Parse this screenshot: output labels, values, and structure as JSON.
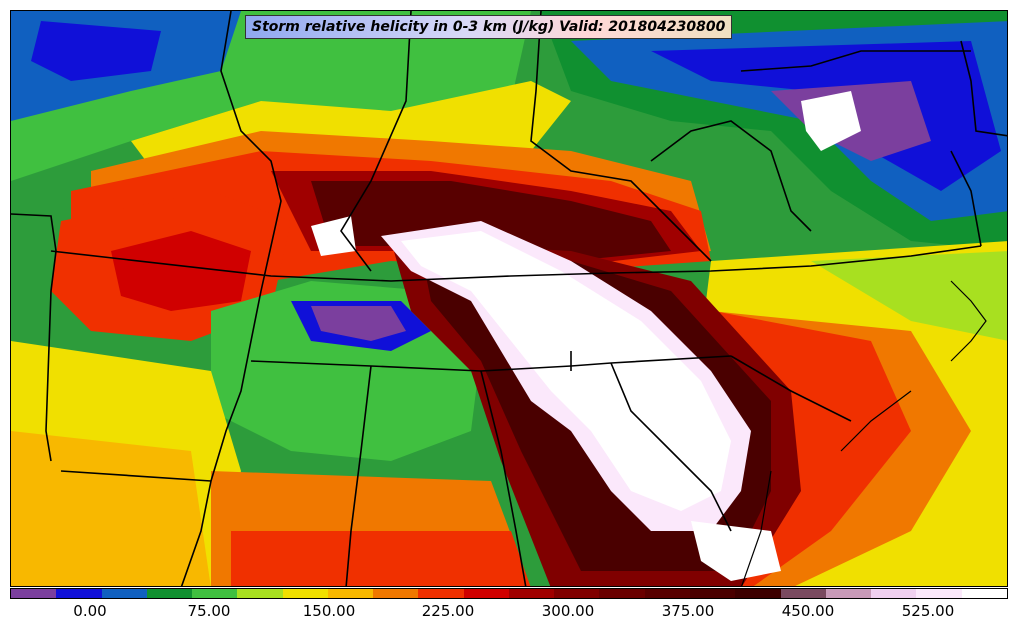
{
  "title": "Storm relative helicity in 0-3 km (J/kg) Valid: 201804230800",
  "colorbar": {
    "colors": [
      "#7b3f9e",
      "#1010d8",
      "#1060c0",
      "#109030",
      "#40c040",
      "#a8e020",
      "#f0e000",
      "#f8b800",
      "#f07800",
      "#f03000",
      "#d00000",
      "#a00000",
      "#800000",
      "#6a0000",
      "#580000",
      "#4a0000",
      "#3c0000",
      "#7a4a60",
      "#c89ab8",
      "#f0d0f0",
      "#fbe8fb",
      "#ffffff"
    ],
    "tick_labels": [
      "0.00",
      "75.00",
      "150.00",
      "225.00",
      "300.00",
      "375.00",
      "450.00",
      "525.00"
    ]
  }
}
